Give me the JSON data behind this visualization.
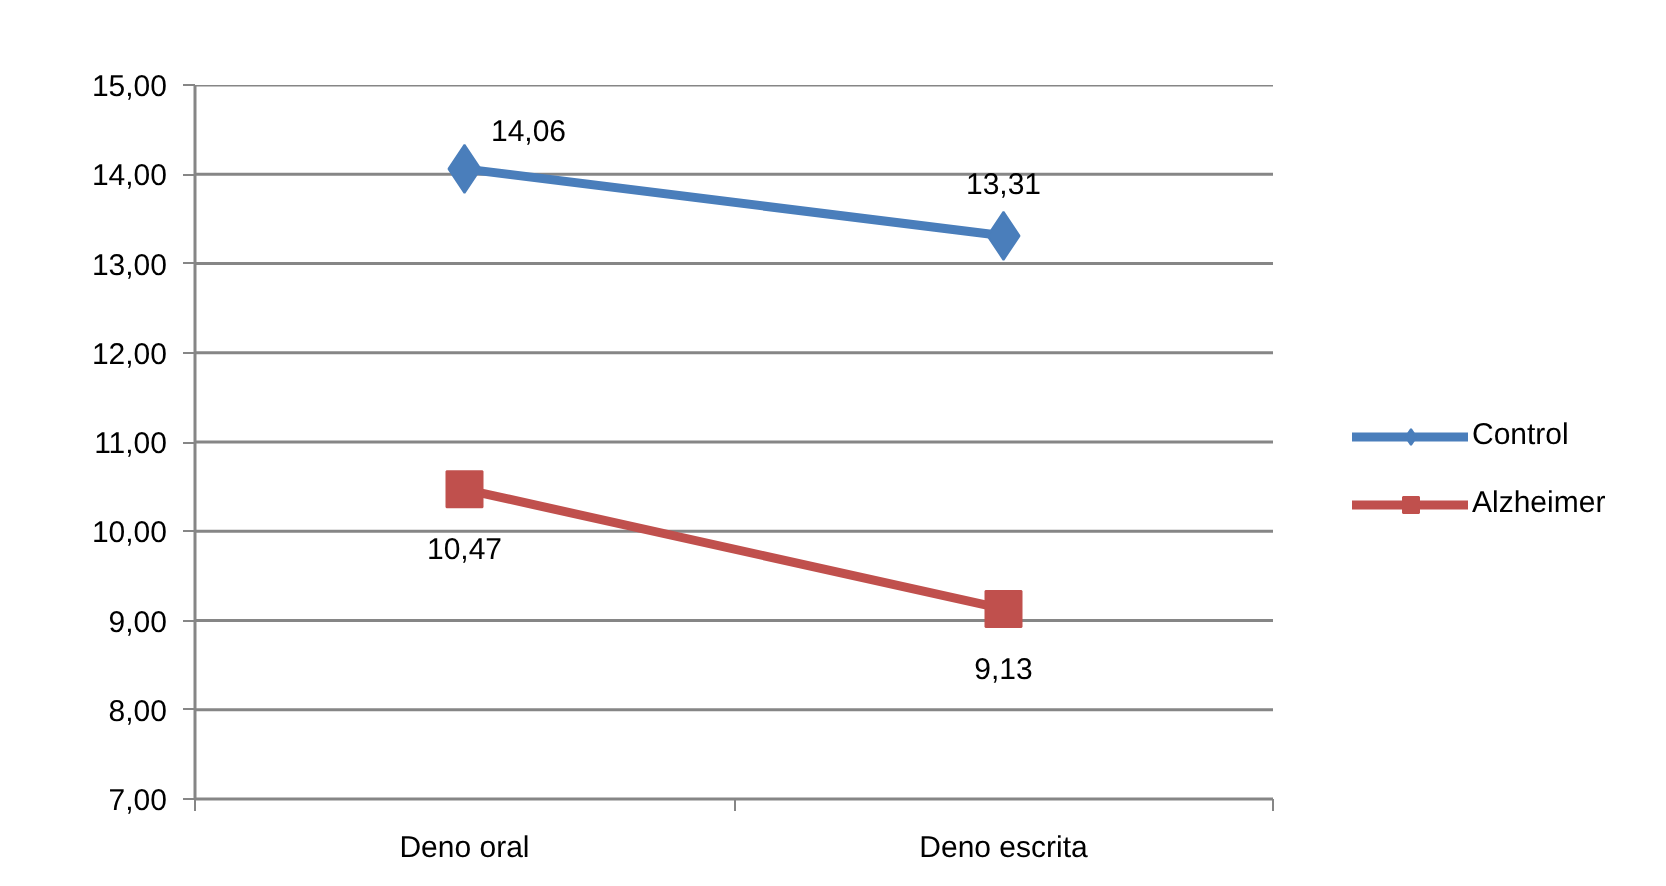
{
  "chart_data": {
    "type": "line",
    "categories": [
      "Deno oral",
      "Deno escrita"
    ],
    "series": [
      {
        "name": "Control",
        "color": "#4a7ebb",
        "marker": "diamond",
        "values": [
          14.06,
          13.31
        ],
        "value_labels": [
          "14,06",
          "13,31"
        ]
      },
      {
        "name": "Alzheimer",
        "color": "#c0504d",
        "marker": "square",
        "values": [
          10.47,
          9.13
        ],
        "value_labels": [
          "10,47",
          "9,13"
        ]
      }
    ],
    "ylim": [
      7,
      15
    ],
    "yticks": [
      {
        "value": 7,
        "label": "7,00"
      },
      {
        "value": 8,
        "label": "8,00"
      },
      {
        "value": 9,
        "label": "9,00"
      },
      {
        "value": 10,
        "label": "10,00"
      },
      {
        "value": 11,
        "label": "11,00"
      },
      {
        "value": 12,
        "label": "12,00"
      },
      {
        "value": 13,
        "label": "13,00"
      },
      {
        "value": 14,
        "label": "14,00"
      },
      {
        "value": 15,
        "label": "15,00"
      }
    ],
    "grid": "y",
    "legend": "right",
    "line_style": "solid"
  }
}
